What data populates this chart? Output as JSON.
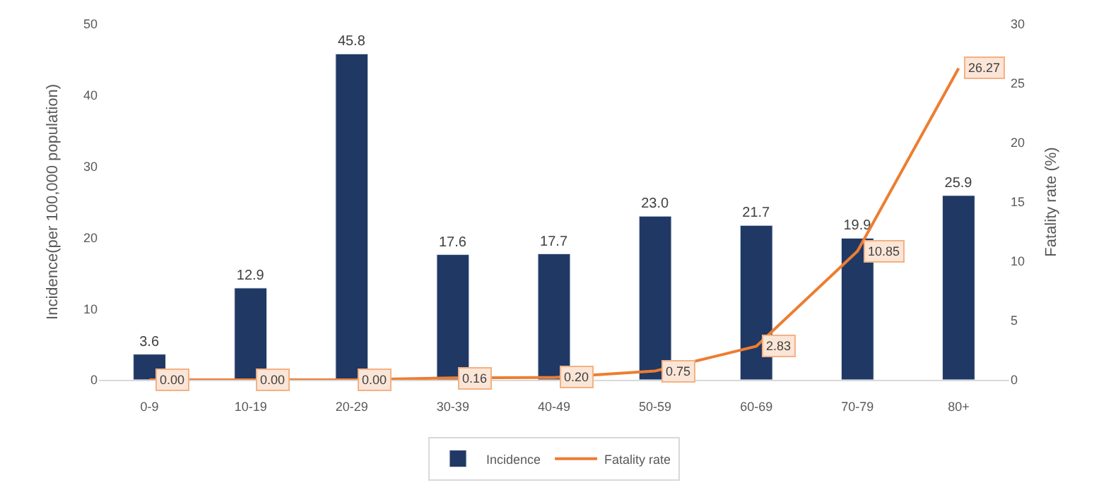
{
  "chart_data": {
    "type": "bar",
    "categories": [
      "0-9",
      "10-19",
      "20-29",
      "30-39",
      "40-49",
      "50-59",
      "60-69",
      "70-79",
      "80+"
    ],
    "series": [
      {
        "name": "Incidence",
        "color": "#203864",
        "values": [
          3.6,
          12.9,
          45.8,
          17.6,
          17.7,
          23.0,
          21.7,
          19.9,
          25.9
        ],
        "value_labels": [
          "3.6",
          "12.9",
          "45.8",
          "17.6",
          "17.7",
          "23.0",
          "21.7",
          "19.9",
          "25.9"
        ]
      },
      {
        "name": "Fatality rate",
        "type": "line",
        "axis": "y2",
        "color": "#ed7d31",
        "values": [
          0.0,
          0.0,
          0.0,
          0.16,
          0.2,
          0.75,
          2.83,
          10.85,
          26.27
        ],
        "value_labels": [
          "0.00",
          "0.00",
          "0.00",
          "0.16",
          "0.20",
          "0.75",
          "2.83",
          "10.85",
          "26.27"
        ]
      }
    ],
    "ylabel": "Incidence(per 100,000 population)",
    "y2label": "Fatality rate (%)",
    "ylim": [
      0,
      50
    ],
    "yticks": [
      0,
      10,
      20,
      30,
      40,
      50
    ],
    "y2lim": [
      0,
      30
    ],
    "y2ticks": [
      0,
      5,
      10,
      15,
      20,
      25,
      30
    ],
    "grid": false,
    "legend": "bottom",
    "marker": "none",
    "line_style": "solid"
  }
}
